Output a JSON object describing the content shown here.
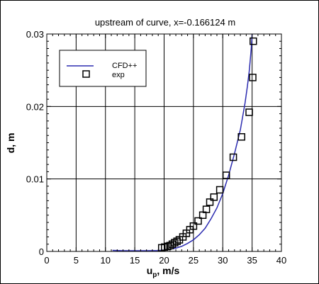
{
  "chart_data": {
    "type": "line",
    "title": "upstream of curve, x=-0.166124 m",
    "xlabel": {
      "main": "u",
      "sub": "p",
      "rest": ", m/s"
    },
    "ylabel": "d, m",
    "xlim": [
      0,
      40
    ],
    "ylim": [
      0,
      0.03
    ],
    "xticks": [
      0,
      5,
      10,
      15,
      20,
      25,
      30,
      35,
      40
    ],
    "yticks": [
      0,
      0.01,
      0.02,
      0.03
    ],
    "xtick_labels": [
      "0",
      "5",
      "10",
      "15",
      "20",
      "25",
      "30",
      "35",
      "40"
    ],
    "ytick_labels": [
      "0",
      "0.01",
      "0.02",
      "0.03"
    ],
    "grid": true,
    "legend_position": "top-left",
    "series": [
      {
        "name": "CFD++",
        "kind": "line",
        "color": "#2b2bb0",
        "x": [
          11.2,
          13,
          15,
          17,
          19,
          20,
          21,
          22,
          23,
          24,
          25,
          26,
          27,
          28,
          29,
          30,
          31,
          32,
          33,
          33.8,
          34.2,
          34.5,
          34.7,
          34.85,
          34.95,
          35.0
        ],
        "y": [
          0.00015,
          0.0001,
          0.0001,
          0.0001,
          0.00012,
          0.0002,
          0.0003,
          0.00045,
          0.0007,
          0.0011,
          0.0016,
          0.0023,
          0.0032,
          0.0045,
          0.006,
          0.008,
          0.0105,
          0.0135,
          0.0168,
          0.0205,
          0.0228,
          0.0248,
          0.0265,
          0.028,
          0.0292,
          0.03
        ]
      },
      {
        "name": "exp",
        "kind": "marker",
        "marker": "square",
        "color": "#000000",
        "x": [
          19.6,
          20.1,
          20.6,
          21.0,
          21.4,
          21.8,
          22.2,
          22.6,
          23.2,
          23.8,
          24.4,
          25.0,
          25.8,
          26.6,
          27.2,
          27.8,
          28.5,
          29.5,
          30.6,
          31.8,
          33.2,
          34.5,
          35.1,
          35.2
        ],
        "y": [
          0.0005,
          0.0006,
          0.0007,
          0.0008,
          0.001,
          0.0012,
          0.0014,
          0.0016,
          0.002,
          0.0025,
          0.003,
          0.0035,
          0.0042,
          0.005,
          0.0058,
          0.0068,
          0.0075,
          0.0085,
          0.0105,
          0.013,
          0.0158,
          0.0192,
          0.024,
          0.029
        ]
      }
    ]
  }
}
